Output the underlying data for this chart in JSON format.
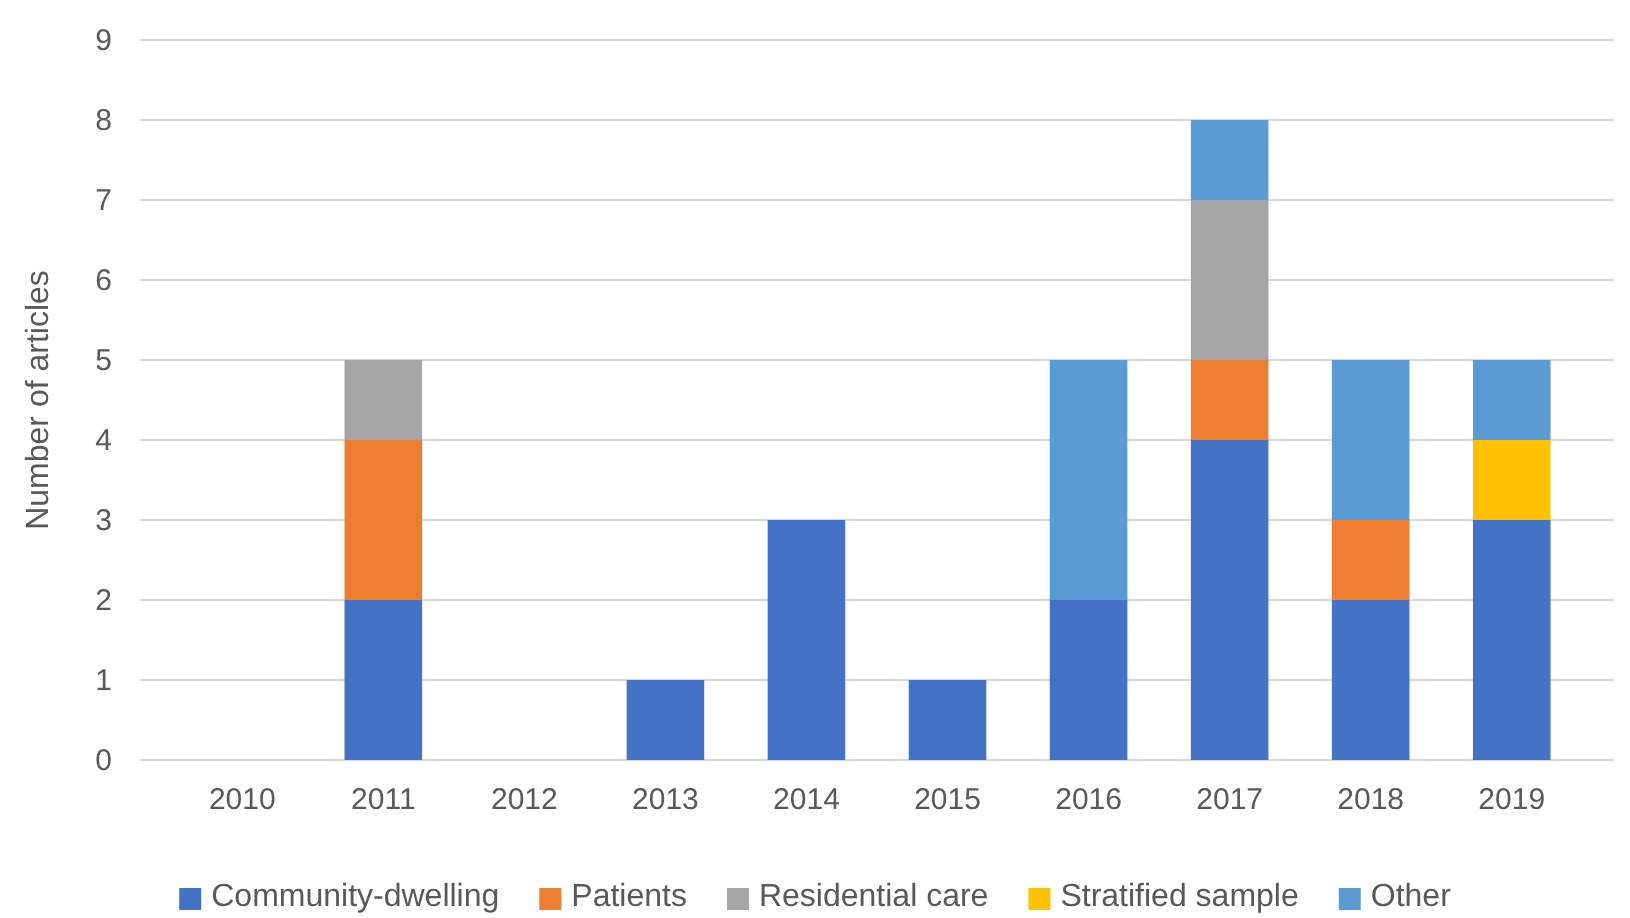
{
  "chart_data": {
    "type": "bar",
    "stacked": true,
    "ylabel": "Number of articles",
    "categories": [
      "2010",
      "2011",
      "2012",
      "2013",
      "2014",
      "2015",
      "2016",
      "2017",
      "2018",
      "2019"
    ],
    "series": [
      {
        "name": "Community-dwelling",
        "color": "#4472c4",
        "values": [
          0,
          2,
          0,
          1,
          3,
          1,
          2,
          4,
          2,
          3
        ]
      },
      {
        "name": "Patients",
        "color": "#ed7d31",
        "values": [
          0,
          2,
          0,
          0,
          0,
          0,
          0,
          1,
          1,
          0
        ]
      },
      {
        "name": "Residential care",
        "color": "#a5a5a5",
        "values": [
          0,
          1,
          0,
          0,
          0,
          0,
          0,
          2,
          0,
          0
        ]
      },
      {
        "name": "Stratified sample",
        "color": "#ffc000",
        "values": [
          0,
          0,
          0,
          0,
          0,
          0,
          0,
          0,
          0,
          1
        ]
      },
      {
        "name": "Other",
        "color": "#5b9bd5",
        "values": [
          0,
          0,
          0,
          0,
          0,
          0,
          3,
          1,
          2,
          1
        ]
      }
    ],
    "ylim": [
      0,
      9
    ],
    "yticks": [
      0,
      1,
      2,
      3,
      4,
      5,
      6,
      7,
      8,
      9
    ],
    "grid": "y",
    "legend": "bottom"
  }
}
